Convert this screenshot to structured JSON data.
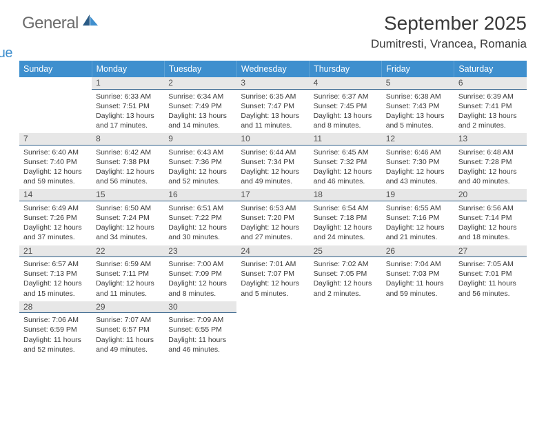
{
  "brand": {
    "word1": "General",
    "word2": "Blue"
  },
  "title": "September 2025",
  "location": "Dumitresti, Vrancea, Romania",
  "weekdays": [
    "Sunday",
    "Monday",
    "Tuesday",
    "Wednesday",
    "Thursday",
    "Friday",
    "Saturday"
  ],
  "colors": {
    "header_bg": "#3e8fce",
    "header_text": "#ffffff",
    "daynum_bg": "#e7e7e7",
    "divider": "#2a5b86",
    "body_text": "#3a3a3a"
  },
  "weeks": [
    {
      "nums": [
        "",
        "1",
        "2",
        "3",
        "4",
        "5",
        "6"
      ],
      "cells": [
        null,
        {
          "sr": "Sunrise: 6:33 AM",
          "ss": "Sunset: 7:51 PM",
          "dl1": "Daylight: 13 hours",
          "dl2": "and 17 minutes."
        },
        {
          "sr": "Sunrise: 6:34 AM",
          "ss": "Sunset: 7:49 PM",
          "dl1": "Daylight: 13 hours",
          "dl2": "and 14 minutes."
        },
        {
          "sr": "Sunrise: 6:35 AM",
          "ss": "Sunset: 7:47 PM",
          "dl1": "Daylight: 13 hours",
          "dl2": "and 11 minutes."
        },
        {
          "sr": "Sunrise: 6:37 AM",
          "ss": "Sunset: 7:45 PM",
          "dl1": "Daylight: 13 hours",
          "dl2": "and 8 minutes."
        },
        {
          "sr": "Sunrise: 6:38 AM",
          "ss": "Sunset: 7:43 PM",
          "dl1": "Daylight: 13 hours",
          "dl2": "and 5 minutes."
        },
        {
          "sr": "Sunrise: 6:39 AM",
          "ss": "Sunset: 7:41 PM",
          "dl1": "Daylight: 13 hours",
          "dl2": "and 2 minutes."
        }
      ]
    },
    {
      "nums": [
        "7",
        "8",
        "9",
        "10",
        "11",
        "12",
        "13"
      ],
      "cells": [
        {
          "sr": "Sunrise: 6:40 AM",
          "ss": "Sunset: 7:40 PM",
          "dl1": "Daylight: 12 hours",
          "dl2": "and 59 minutes."
        },
        {
          "sr": "Sunrise: 6:42 AM",
          "ss": "Sunset: 7:38 PM",
          "dl1": "Daylight: 12 hours",
          "dl2": "and 56 minutes."
        },
        {
          "sr": "Sunrise: 6:43 AM",
          "ss": "Sunset: 7:36 PM",
          "dl1": "Daylight: 12 hours",
          "dl2": "and 52 minutes."
        },
        {
          "sr": "Sunrise: 6:44 AM",
          "ss": "Sunset: 7:34 PM",
          "dl1": "Daylight: 12 hours",
          "dl2": "and 49 minutes."
        },
        {
          "sr": "Sunrise: 6:45 AM",
          "ss": "Sunset: 7:32 PM",
          "dl1": "Daylight: 12 hours",
          "dl2": "and 46 minutes."
        },
        {
          "sr": "Sunrise: 6:46 AM",
          "ss": "Sunset: 7:30 PM",
          "dl1": "Daylight: 12 hours",
          "dl2": "and 43 minutes."
        },
        {
          "sr": "Sunrise: 6:48 AM",
          "ss": "Sunset: 7:28 PM",
          "dl1": "Daylight: 12 hours",
          "dl2": "and 40 minutes."
        }
      ]
    },
    {
      "nums": [
        "14",
        "15",
        "16",
        "17",
        "18",
        "19",
        "20"
      ],
      "cells": [
        {
          "sr": "Sunrise: 6:49 AM",
          "ss": "Sunset: 7:26 PM",
          "dl1": "Daylight: 12 hours",
          "dl2": "and 37 minutes."
        },
        {
          "sr": "Sunrise: 6:50 AM",
          "ss": "Sunset: 7:24 PM",
          "dl1": "Daylight: 12 hours",
          "dl2": "and 34 minutes."
        },
        {
          "sr": "Sunrise: 6:51 AM",
          "ss": "Sunset: 7:22 PM",
          "dl1": "Daylight: 12 hours",
          "dl2": "and 30 minutes."
        },
        {
          "sr": "Sunrise: 6:53 AM",
          "ss": "Sunset: 7:20 PM",
          "dl1": "Daylight: 12 hours",
          "dl2": "and 27 minutes."
        },
        {
          "sr": "Sunrise: 6:54 AM",
          "ss": "Sunset: 7:18 PM",
          "dl1": "Daylight: 12 hours",
          "dl2": "and 24 minutes."
        },
        {
          "sr": "Sunrise: 6:55 AM",
          "ss": "Sunset: 7:16 PM",
          "dl1": "Daylight: 12 hours",
          "dl2": "and 21 minutes."
        },
        {
          "sr": "Sunrise: 6:56 AM",
          "ss": "Sunset: 7:14 PM",
          "dl1": "Daylight: 12 hours",
          "dl2": "and 18 minutes."
        }
      ]
    },
    {
      "nums": [
        "21",
        "22",
        "23",
        "24",
        "25",
        "26",
        "27"
      ],
      "cells": [
        {
          "sr": "Sunrise: 6:57 AM",
          "ss": "Sunset: 7:13 PM",
          "dl1": "Daylight: 12 hours",
          "dl2": "and 15 minutes."
        },
        {
          "sr": "Sunrise: 6:59 AM",
          "ss": "Sunset: 7:11 PM",
          "dl1": "Daylight: 12 hours",
          "dl2": "and 11 minutes."
        },
        {
          "sr": "Sunrise: 7:00 AM",
          "ss": "Sunset: 7:09 PM",
          "dl1": "Daylight: 12 hours",
          "dl2": "and 8 minutes."
        },
        {
          "sr": "Sunrise: 7:01 AM",
          "ss": "Sunset: 7:07 PM",
          "dl1": "Daylight: 12 hours",
          "dl2": "and 5 minutes."
        },
        {
          "sr": "Sunrise: 7:02 AM",
          "ss": "Sunset: 7:05 PM",
          "dl1": "Daylight: 12 hours",
          "dl2": "and 2 minutes."
        },
        {
          "sr": "Sunrise: 7:04 AM",
          "ss": "Sunset: 7:03 PM",
          "dl1": "Daylight: 11 hours",
          "dl2": "and 59 minutes."
        },
        {
          "sr": "Sunrise: 7:05 AM",
          "ss": "Sunset: 7:01 PM",
          "dl1": "Daylight: 11 hours",
          "dl2": "and 56 minutes."
        }
      ]
    },
    {
      "nums": [
        "28",
        "29",
        "30",
        "",
        "",
        "",
        ""
      ],
      "cells": [
        {
          "sr": "Sunrise: 7:06 AM",
          "ss": "Sunset: 6:59 PM",
          "dl1": "Daylight: 11 hours",
          "dl2": "and 52 minutes."
        },
        {
          "sr": "Sunrise: 7:07 AM",
          "ss": "Sunset: 6:57 PM",
          "dl1": "Daylight: 11 hours",
          "dl2": "and 49 minutes."
        },
        {
          "sr": "Sunrise: 7:09 AM",
          "ss": "Sunset: 6:55 PM",
          "dl1": "Daylight: 11 hours",
          "dl2": "and 46 minutes."
        },
        null,
        null,
        null,
        null
      ]
    }
  ]
}
